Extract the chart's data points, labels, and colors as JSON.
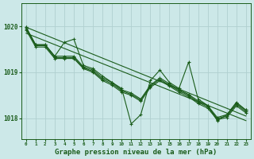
{
  "bg_color": "#cce8e8",
  "grid_color": "#b0d0d0",
  "line_color": "#1a5c1a",
  "xlabel": "Graphe pression niveau de la mer (hPa)",
  "xlabel_fontsize": 6.5,
  "ylabel_ticks": [
    1018,
    1019,
    1020
  ],
  "xlim": [
    -0.5,
    23.5
  ],
  "ylim": [
    1017.55,
    1020.5
  ],
  "xtick_labels": [
    "0",
    "1",
    "2",
    "3",
    "4",
    "5",
    "6",
    "7",
    "8",
    "9",
    "10",
    "11",
    "12",
    "13",
    "14",
    "15",
    "16",
    "17",
    "18",
    "19",
    "20",
    "21",
    "22",
    "23"
  ],
  "line1": [
    1019.98,
    1019.6,
    1019.6,
    1019.35,
    1019.65,
    1019.72,
    1019.15,
    1019.08,
    1018.92,
    1018.78,
    1018.65,
    1017.88,
    1018.08,
    1018.82,
    1019.05,
    1018.78,
    1018.65,
    1019.22,
    1018.42,
    1018.28,
    1017.95,
    1018.08,
    1018.35,
    1018.18
  ],
  "line2": [
    1019.98,
    1019.6,
    1019.6,
    1019.35,
    1019.35,
    1019.35,
    1019.12,
    1019.05,
    1018.88,
    1018.78,
    1018.62,
    1018.55,
    1018.42,
    1018.72,
    1018.88,
    1018.75,
    1018.62,
    1018.52,
    1018.38,
    1018.28,
    1018.02,
    1018.08,
    1018.32,
    1018.18
  ],
  "line3": [
    1019.95,
    1019.58,
    1019.58,
    1019.32,
    1019.32,
    1019.32,
    1019.1,
    1019.02,
    1018.85,
    1018.75,
    1018.6,
    1018.52,
    1018.4,
    1018.7,
    1018.85,
    1018.72,
    1018.6,
    1018.5,
    1018.35,
    1018.25,
    1018.0,
    1018.05,
    1018.3,
    1018.15
  ],
  "line4": [
    1019.92,
    1019.55,
    1019.55,
    1019.3,
    1019.3,
    1019.3,
    1019.08,
    1019.0,
    1018.82,
    1018.72,
    1018.57,
    1018.5,
    1018.37,
    1018.67,
    1018.82,
    1018.7,
    1018.57,
    1018.47,
    1018.32,
    1018.22,
    1017.97,
    1018.02,
    1018.27,
    1018.12
  ],
  "trend1": [
    1019.98,
    1018.05
  ],
  "trend2": [
    1019.85,
    1017.95
  ]
}
